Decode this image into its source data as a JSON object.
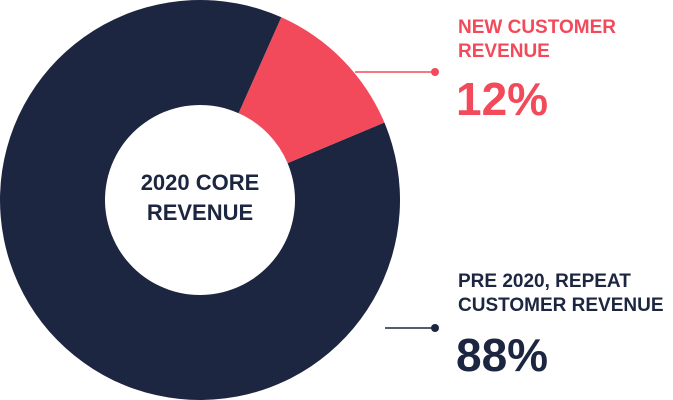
{
  "chart_data": {
    "type": "donut",
    "title": "2020 CORE REVENUE",
    "categories": [
      "NEW CUSTOMER REVENUE",
      "PRE 2020, REPEAT CUSTOMER REVENUE"
    ],
    "values": [
      12,
      88
    ],
    "value_labels": [
      "12%",
      "88%"
    ],
    "colors": [
      "#f24a5a",
      "#1c2640"
    ]
  }
}
